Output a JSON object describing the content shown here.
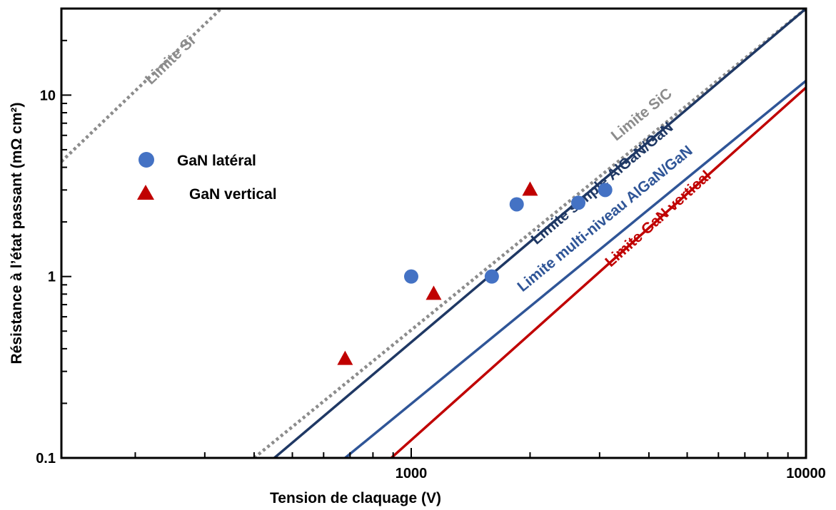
{
  "chart_data": {
    "type": "scatter",
    "xlabel": "Tension de claquage (V)",
    "ylabel": "Résistance à l’état passant (mΩ cm²)",
    "xscale": "log",
    "yscale": "log",
    "xlim": [
      130,
      10000
    ],
    "ylim": [
      0.1,
      30
    ],
    "x_ticks": [
      {
        "value": 1000,
        "label": "1000"
      },
      {
        "value": 10000,
        "label": "10000"
      }
    ],
    "y_ticks": [
      {
        "value": 0.1,
        "label": "0.1"
      },
      {
        "value": 1,
        "label": "1"
      },
      {
        "value": 10,
        "label": "10"
      }
    ],
    "legend_position": "left",
    "series": [
      {
        "name": "GaN latéral",
        "marker": "circle",
        "color": "#4472C4",
        "points": [
          {
            "x": 1000,
            "y": 1.0
          },
          {
            "x": 1600,
            "y": 1.0
          },
          {
            "x": 1850,
            "y": 2.5
          },
          {
            "x": 2650,
            "y": 2.55
          },
          {
            "x": 3100,
            "y": 3.0
          }
        ]
      },
      {
        "name": "GaN vertical",
        "marker": "triangle",
        "color": "#C00000",
        "points": [
          {
            "x": 680,
            "y": 0.35
          },
          {
            "x": 1140,
            "y": 0.8
          },
          {
            "x": 2000,
            "y": 3.0
          }
        ]
      }
    ],
    "limit_lines": [
      {
        "label": "Limite Si",
        "color": "#8C8C8C",
        "style": "dotted",
        "points": [
          [
            130,
            4.3
          ],
          [
            330,
            30
          ]
        ]
      },
      {
        "label": "Limite SiC",
        "color": "#8C8C8C",
        "style": "dotted",
        "points": [
          [
            400,
            0.1
          ],
          [
            10000,
            30
          ]
        ]
      },
      {
        "label": "Limite simple AlGaN/GaN",
        "color": "#1F3864",
        "style": "solid",
        "points": [
          [
            450,
            0.1
          ],
          [
            10000,
            30
          ]
        ]
      },
      {
        "label": "Limite multi-niveau AlGaN/GaN",
        "color": "#2F5597",
        "style": "solid",
        "points": [
          [
            680,
            0.1
          ],
          [
            10000,
            12
          ]
        ]
      },
      {
        "label": "Limite GaN vertical",
        "color": "#C00000",
        "style": "solid",
        "points": [
          [
            890,
            0.1
          ],
          [
            10000,
            11
          ]
        ]
      }
    ]
  }
}
